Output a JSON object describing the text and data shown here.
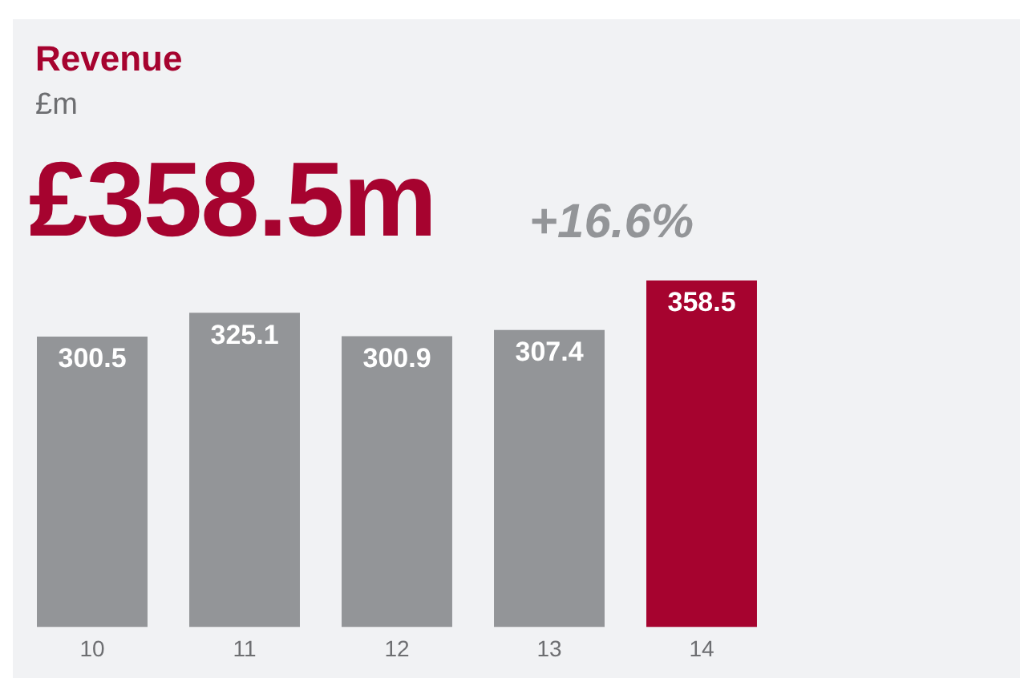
{
  "chart_data": {
    "type": "bar",
    "title": "Revenue",
    "subtitle": "£m",
    "annotations": [
      "£358.5m",
      "+16.6%"
    ],
    "categories": [
      "10",
      "11",
      "12",
      "13",
      "14"
    ],
    "values": [
      300.5,
      325.1,
      300.9,
      307.4,
      358.5
    ],
    "colors": [
      "#939598",
      "#939598",
      "#939598",
      "#939598",
      "#a6032f"
    ],
    "ylim": [
      0,
      358.5
    ],
    "data_labels": true,
    "grid": false,
    "legend": false
  }
}
